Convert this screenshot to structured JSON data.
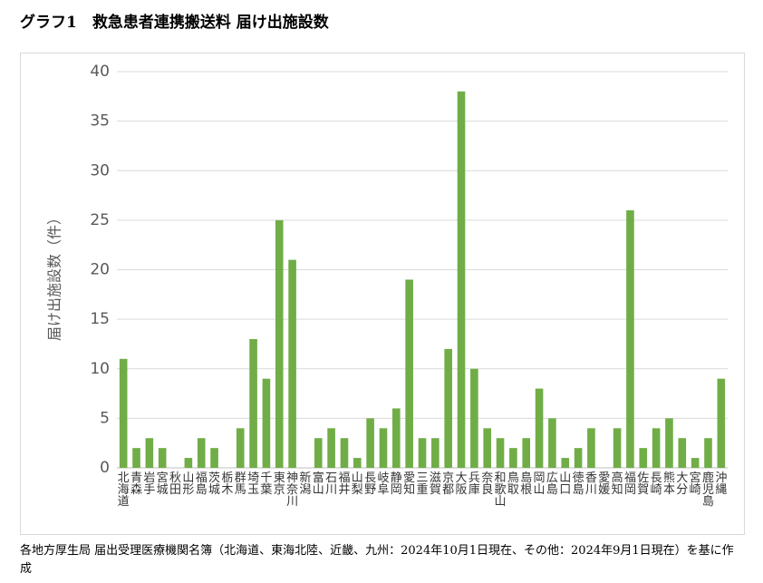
{
  "title": "グラフ1　救急患者連携搬送料 届け出施設数",
  "source_note": "各地方厚生局 届出受理医療機関名簿（北海道、東海北陸、近畿、九州：2024年10月1日現在、その他：2024年9月1日現在）を基に作成",
  "chart_data": {
    "type": "bar",
    "title": "",
    "xlabel": "",
    "ylabel": "届け出施設数（件）",
    "ylim": [
      0,
      40
    ],
    "yticks": [
      0,
      5,
      10,
      15,
      20,
      25,
      30,
      35,
      40
    ],
    "grid": true,
    "bar_color": "#70ad47",
    "categories": [
      "北海道",
      "青森",
      "岩手",
      "宮城",
      "秋田",
      "山形",
      "福島",
      "茨城",
      "栃木",
      "群馬",
      "埼玉",
      "千葉",
      "東京",
      "神奈川",
      "新潟",
      "富山",
      "石川",
      "福井",
      "山梨",
      "長野",
      "岐阜",
      "静岡",
      "愛知",
      "三重",
      "滋賀",
      "京都",
      "大阪",
      "兵庫",
      "奈良",
      "和歌山",
      "鳥取",
      "島根",
      "岡山",
      "広島",
      "山口",
      "徳島",
      "香川",
      "愛媛",
      "高知",
      "福岡",
      "佐賀",
      "長崎",
      "熊本",
      "大分",
      "宮崎",
      "鹿児島",
      "沖縄"
    ],
    "values": [
      11,
      2,
      3,
      2,
      0,
      1,
      3,
      2,
      0,
      4,
      13,
      9,
      25,
      21,
      0,
      3,
      4,
      3,
      1,
      5,
      4,
      6,
      19,
      3,
      3,
      12,
      38,
      10,
      4,
      3,
      2,
      3,
      8,
      5,
      1,
      2,
      4,
      0,
      4,
      26,
      2,
      4,
      5,
      3,
      1,
      3,
      9
    ]
  }
}
